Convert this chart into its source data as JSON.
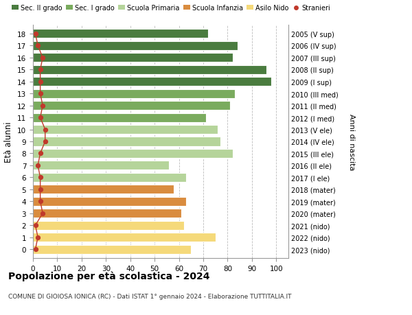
{
  "ages": [
    18,
    17,
    16,
    15,
    14,
    13,
    12,
    11,
    10,
    9,
    8,
    7,
    6,
    5,
    4,
    3,
    2,
    1,
    0
  ],
  "bar_values": [
    72,
    84,
    82,
    96,
    98,
    83,
    81,
    71,
    76,
    77,
    82,
    56,
    63,
    58,
    63,
    61,
    62,
    75,
    65
  ],
  "stranieri": [
    1,
    2,
    4,
    3,
    3,
    3,
    4,
    3,
    5,
    5,
    3,
    2,
    3,
    3,
    3,
    4,
    1,
    2,
    1
  ],
  "right_labels": [
    "2005 (V sup)",
    "2006 (IV sup)",
    "2007 (III sup)",
    "2008 (II sup)",
    "2009 (I sup)",
    "2010 (III med)",
    "2011 (II med)",
    "2012 (I med)",
    "2013 (V ele)",
    "2014 (IV ele)",
    "2015 (III ele)",
    "2016 (II ele)",
    "2017 (I ele)",
    "2018 (mater)",
    "2019 (mater)",
    "2020 (mater)",
    "2021 (nido)",
    "2022 (nido)",
    "2023 (nido)"
  ],
  "bar_colors": [
    "#4a7c3f",
    "#4a7c3f",
    "#4a7c3f",
    "#4a7c3f",
    "#4a7c3f",
    "#7aab5e",
    "#7aab5e",
    "#7aab5e",
    "#b5d49a",
    "#b5d49a",
    "#b5d49a",
    "#b5d49a",
    "#b5d49a",
    "#d98c3f",
    "#d98c3f",
    "#d98c3f",
    "#f5d97a",
    "#f5d97a",
    "#f5d97a"
  ],
  "legend_labels": [
    "Sec. II grado",
    "Sec. I grado",
    "Scuola Primaria",
    "Scuola Infanzia",
    "Asilo Nido",
    "Stranieri"
  ],
  "legend_colors": [
    "#4a7c3f",
    "#7aab5e",
    "#b5d49a",
    "#d98c3f",
    "#f5d97a",
    "#c0392b"
  ],
  "title": "Popolazione per età scolastica - 2024",
  "subtitle": "COMUNE DI GIOIOSA IONICA (RC) - Dati ISTAT 1° gennaio 2024 - Elaborazione TUTTITALIA.IT",
  "ylabel": "Età alunni",
  "right_ylabel": "Anni di nascita",
  "xlim": [
    0,
    105
  ],
  "xticks": [
    0,
    10,
    20,
    30,
    40,
    50,
    60,
    70,
    80,
    90,
    100
  ],
  "bar_height": 0.75,
  "stranieri_color": "#c0392b"
}
